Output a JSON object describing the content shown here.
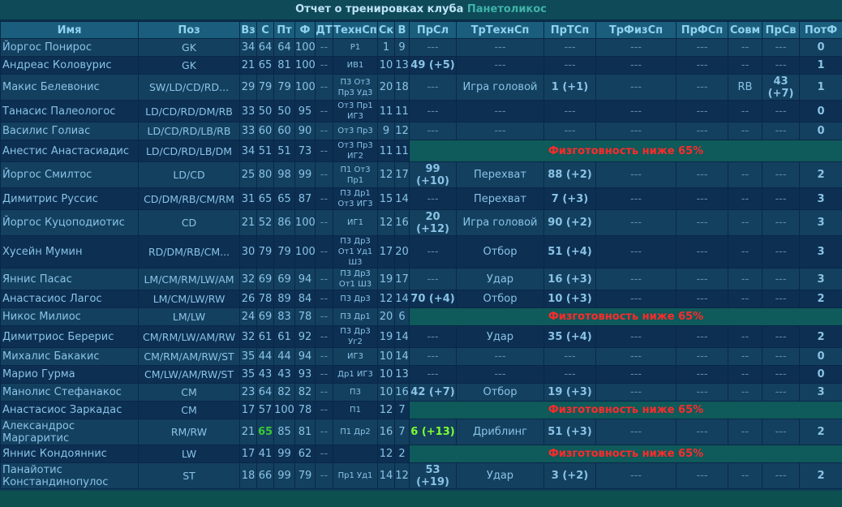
{
  "report": {
    "title_prefix": "Отчет о тренировках клуба",
    "club": "Панетоликос"
  },
  "columns": [
    "Имя",
    "Поз",
    "Вз",
    "С",
    "Пт",
    "Ф",
    "ДТ",
    "ТехнСп",
    "Ск",
    "В",
    "ПрСл",
    "ТрТехнСп",
    "ПрТСп",
    "ТрФизСп",
    "ПрФСп",
    "Совм",
    "ПрСв",
    "ПотФ"
  ],
  "warning_text": "Физготовность ниже 65%",
  "players": [
    {
      "name": "Йоргос Понирос",
      "pos": "GK",
      "vz": "34",
      "s": "64",
      "pt": "64",
      "f": "100",
      "dt": "--",
      "tech": "Р1",
      "sk": "1",
      "v": "9",
      "prsl": "---",
      "trtech": "---",
      "prtsp": "---",
      "trfiz": "---",
      "prfsp": "---",
      "sovm": "--",
      "prsv": "---",
      "potf": "0"
    },
    {
      "name": "Андреас Коловурис",
      "pos": "GK",
      "vz": "21",
      "s": "65",
      "pt": "81",
      "f": "100",
      "dt": "--",
      "tech": "ИВ1",
      "sk": "10",
      "v": "13",
      "prsl": "49 (+5)",
      "trtech": "---",
      "prtsp": "---",
      "trfiz": "---",
      "prfsp": "---",
      "sovm": "--",
      "prsv": "---",
      "potf": "1"
    },
    {
      "name": "Макис Белевонис",
      "pos": "SW/LD/CD/RD...",
      "vz": "29",
      "s": "79",
      "pt": "79",
      "f": "100",
      "dt": "--",
      "tech": "П3 От3 Пр3 Уд3",
      "sk": "20",
      "v": "18",
      "prsl": "---",
      "trtech": "Игра головой",
      "prtsp": "1 (+1)",
      "trfiz": "---",
      "prfsp": "---",
      "sovm": "RB",
      "prsv": "43 (+7)",
      "potf": "1"
    },
    {
      "name": "Танасис Палеологос",
      "pos": "LD/CD/RD/DM/RB",
      "vz": "33",
      "s": "50",
      "pt": "50",
      "f": "95",
      "dt": "--",
      "tech": "От3 Пр1 ИГ3",
      "sk": "11",
      "v": "11",
      "prsl": "---",
      "trtech": "---",
      "prtsp": "---",
      "trfiz": "---",
      "prfsp": "---",
      "sovm": "--",
      "prsv": "---",
      "potf": "0"
    },
    {
      "name": "Василис Голиас",
      "pos": "LD/CD/RD/LB/RB",
      "vz": "33",
      "s": "60",
      "pt": "60",
      "f": "90",
      "dt": "--",
      "tech": "От3 Пр3",
      "sk": "9",
      "v": "12",
      "prsl": "---",
      "trtech": "---",
      "prtsp": "---",
      "trfiz": "---",
      "prfsp": "---",
      "sovm": "--",
      "prsv": "---",
      "potf": "0"
    },
    {
      "name": "Анестис Анастасиадис",
      "pos": "LD/CD/RD/LB/DM",
      "vz": "34",
      "s": "51",
      "pt": "51",
      "f": "73",
      "dt": "--",
      "tech": "От3 Пр3 ИГ2",
      "sk": "11",
      "v": "11",
      "warn": true
    },
    {
      "name": "Йоргос Смилтос",
      "pos": "LD/CD",
      "vz": "25",
      "s": "80",
      "pt": "98",
      "f": "99",
      "dt": "--",
      "tech": "П1 От3 Пр1",
      "sk": "12",
      "v": "17",
      "prsl": "99 (+10)",
      "trtech": "Перехват",
      "prtsp": "88 (+2)",
      "trfiz": "---",
      "prfsp": "---",
      "sovm": "--",
      "prsv": "---",
      "potf": "2"
    },
    {
      "name": "Димитрис Руссис",
      "pos": "CD/DM/RB/CM/RM",
      "vz": "31",
      "s": "65",
      "pt": "65",
      "f": "87",
      "dt": "--",
      "tech": "П3 Др1 От3 ИГ3",
      "sk": "15",
      "v": "14",
      "prsl": "---",
      "trtech": "Перехват",
      "prtsp": "7 (+3)",
      "trfiz": "---",
      "prfsp": "---",
      "sovm": "--",
      "prsv": "---",
      "potf": "3"
    },
    {
      "name": "Йоргос Куцоподиотис",
      "pos": "CD",
      "vz": "21",
      "s": "52",
      "pt": "86",
      "f": "100",
      "dt": "--",
      "tech": "ИГ1",
      "sk": "12",
      "v": "16",
      "prsl": "20 (+12)",
      "trtech": "Игра головой",
      "prtsp": "90 (+2)",
      "trfiz": "---",
      "prfsp": "---",
      "sovm": "--",
      "prsv": "---",
      "potf": "3"
    },
    {
      "name": "Хусейн Мумин",
      "pos": "RD/DM/RB/CM...",
      "vz": "30",
      "s": "79",
      "pt": "79",
      "f": "100",
      "dt": "--",
      "tech": "П3 Др3 От1 Уд1 Ш3",
      "sk": "17",
      "v": "20",
      "prsl": "---",
      "trtech": "Отбор",
      "prtsp": "51 (+4)",
      "trfiz": "---",
      "prfsp": "---",
      "sovm": "--",
      "prsv": "---",
      "potf": "3"
    },
    {
      "name": "Яннис Пасас",
      "pos": "LM/CM/RM/LW/AM",
      "vz": "32",
      "s": "69",
      "pt": "69",
      "f": "94",
      "dt": "--",
      "tech": "П3 Др3 От1 Ш3",
      "sk": "19",
      "v": "17",
      "prsl": "---",
      "trtech": "Удар",
      "prtsp": "16 (+3)",
      "trfiz": "---",
      "prfsp": "---",
      "sovm": "--",
      "prsv": "---",
      "potf": "3"
    },
    {
      "name": "Анастасиос Лагос",
      "pos": "LM/CM/LW/RW",
      "vz": "26",
      "s": "78",
      "pt": "89",
      "f": "84",
      "dt": "--",
      "tech": "П3 Др3",
      "sk": "12",
      "v": "14",
      "prsl": "70 (+4)",
      "trtech": "Отбор",
      "prtsp": "10 (+3)",
      "trfiz": "---",
      "prfsp": "---",
      "sovm": "--",
      "prsv": "---",
      "potf": "2"
    },
    {
      "name": "Никос Милиос",
      "pos": "LM/LW",
      "vz": "24",
      "s": "69",
      "pt": "83",
      "f": "78",
      "dt": "--",
      "tech": "П3 Др1",
      "sk": "20",
      "v": "6",
      "warn": true
    },
    {
      "name": "Димитриос Берерис",
      "pos": "CM/RM/LW/AM/RW",
      "vz": "32",
      "s": "61",
      "pt": "61",
      "f": "92",
      "dt": "--",
      "tech": "П3 Др3 Уг2",
      "sk": "19",
      "v": "14",
      "prsl": "---",
      "trtech": "Удар",
      "prtsp": "35 (+4)",
      "trfiz": "---",
      "prfsp": "---",
      "sovm": "--",
      "prsv": "---",
      "potf": "2"
    },
    {
      "name": "Михалис Бакакис",
      "pos": "CM/RM/AM/RW/ST",
      "vz": "35",
      "s": "44",
      "pt": "44",
      "f": "94",
      "dt": "--",
      "tech": "ИГ3",
      "sk": "10",
      "v": "14",
      "prsl": "---",
      "trtech": "---",
      "prtsp": "---",
      "trfiz": "---",
      "prfsp": "---",
      "sovm": "--",
      "prsv": "---",
      "potf": "0"
    },
    {
      "name": "Марио Гурма",
      "pos": "CM/LW/AM/RW/ST",
      "vz": "35",
      "s": "43",
      "pt": "43",
      "f": "93",
      "dt": "--",
      "tech": "Др1 ИГ3",
      "sk": "10",
      "v": "13",
      "prsl": "---",
      "trtech": "---",
      "prtsp": "---",
      "trfiz": "---",
      "prfsp": "---",
      "sovm": "--",
      "prsv": "---",
      "potf": "0"
    },
    {
      "name": "Манолис Стефанакос",
      "pos": "CM",
      "vz": "23",
      "s": "64",
      "pt": "82",
      "f": "82",
      "dt": "--",
      "tech": "П3",
      "sk": "10",
      "v": "16",
      "prsl": "42 (+7)",
      "trtech": "Отбор",
      "prtsp": "19 (+3)",
      "trfiz": "---",
      "prfsp": "---",
      "sovm": "--",
      "prsv": "---",
      "potf": "3"
    },
    {
      "name": "Анастасиос Заркадас",
      "pos": "CM",
      "vz": "17",
      "s": "57",
      "pt": "100",
      "f": "78",
      "dt": "--",
      "tech": "П1",
      "sk": "12",
      "v": "7",
      "warn": true
    },
    {
      "name": "Александрос Маргаритис",
      "pos": "RM/RW",
      "vz": "21",
      "s": "65",
      "pt": "85",
      "f": "81",
      "dt": "--",
      "tech": "П1 Др2",
      "sk": "16",
      "v": "7",
      "prsl": "6 (+13)",
      "trtech": "Дриблинг",
      "prtsp": "51 (+3)",
      "trfiz": "---",
      "prfsp": "---",
      "sovm": "--",
      "prsv": "---",
      "potf": "2",
      "hl": true
    },
    {
      "name": "Яннис Кондояннис",
      "pos": "LW",
      "vz": "17",
      "s": "41",
      "pt": "99",
      "f": "62",
      "dt": "--",
      "tech": "",
      "sk": "12",
      "v": "2",
      "warn": true
    },
    {
      "name": "Панайотис Констандинопулос",
      "pos": "ST",
      "vz": "18",
      "s": "66",
      "pt": "99",
      "f": "79",
      "dt": "--",
      "tech": "Пр1 Уд1",
      "sk": "14",
      "v": "12",
      "prsl": "53 (+19)",
      "trtech": "Удар",
      "prtsp": "3 (+2)",
      "trfiz": "---",
      "prfsp": "---",
      "sovm": "--",
      "prsv": "---",
      "potf": "2"
    }
  ]
}
